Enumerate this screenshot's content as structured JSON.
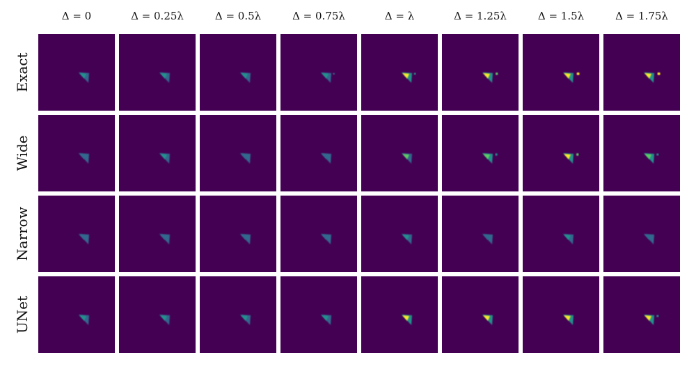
{
  "column_headers": [
    "Δ = 0",
    "Δ = 0.25λ",
    "Δ = 0.5λ",
    "Δ = 0.75λ",
    "Δ = λ",
    "Δ = 1.25λ",
    "Δ = 1.5λ",
    "Δ = 1.75λ"
  ],
  "row_labels": [
    "Exact",
    "Wide",
    "Narrow",
    "UNet"
  ],
  "colors": {
    "background": "#440154",
    "low": "#31688e",
    "mid": "#21918c",
    "high": "#5ec962",
    "peak": "#fde725"
  },
  "panels": [
    [
      {
        "intensity": 0.55,
        "spot": 0.0
      },
      {
        "intensity": 0.55,
        "spot": 0.0
      },
      {
        "intensity": 0.6,
        "spot": 0.0
      },
      {
        "intensity": 0.6,
        "spot": 0.1
      },
      {
        "intensity": 0.85,
        "spot": 0.2
      },
      {
        "intensity": 0.9,
        "spot": 0.45
      },
      {
        "intensity": 0.95,
        "spot": 0.6
      },
      {
        "intensity": 0.95,
        "spot": 0.6
      }
    ],
    [
      {
        "intensity": 0.35,
        "spot": 0.0
      },
      {
        "intensity": 0.45,
        "spot": 0.0
      },
      {
        "intensity": 0.4,
        "spot": 0.0
      },
      {
        "intensity": 0.4,
        "spot": 0.0
      },
      {
        "intensity": 0.75,
        "spot": 0.0
      },
      {
        "intensity": 0.8,
        "spot": 0.35
      },
      {
        "intensity": 0.85,
        "spot": 0.45
      },
      {
        "intensity": 0.8,
        "spot": 0.3
      }
    ],
    [
      {
        "intensity": 0.3,
        "spot": 0.0
      },
      {
        "intensity": 0.3,
        "spot": 0.0
      },
      {
        "intensity": 0.3,
        "spot": 0.0
      },
      {
        "intensity": 0.3,
        "spot": 0.0
      },
      {
        "intensity": 0.45,
        "spot": 0.0
      },
      {
        "intensity": 0.3,
        "spot": 0.0
      },
      {
        "intensity": 0.45,
        "spot": 0.0
      },
      {
        "intensity": 0.4,
        "spot": 0.0
      }
    ],
    [
      {
        "intensity": 0.55,
        "spot": 0.0
      },
      {
        "intensity": 0.55,
        "spot": 0.0
      },
      {
        "intensity": 0.55,
        "spot": 0.0
      },
      {
        "intensity": 0.55,
        "spot": 0.0
      },
      {
        "intensity": 0.95,
        "spot": 0.0
      },
      {
        "intensity": 0.95,
        "spot": 0.0
      },
      {
        "intensity": 0.95,
        "spot": 0.0
      },
      {
        "intensity": 0.95,
        "spot": 0.3
      }
    ]
  ]
}
